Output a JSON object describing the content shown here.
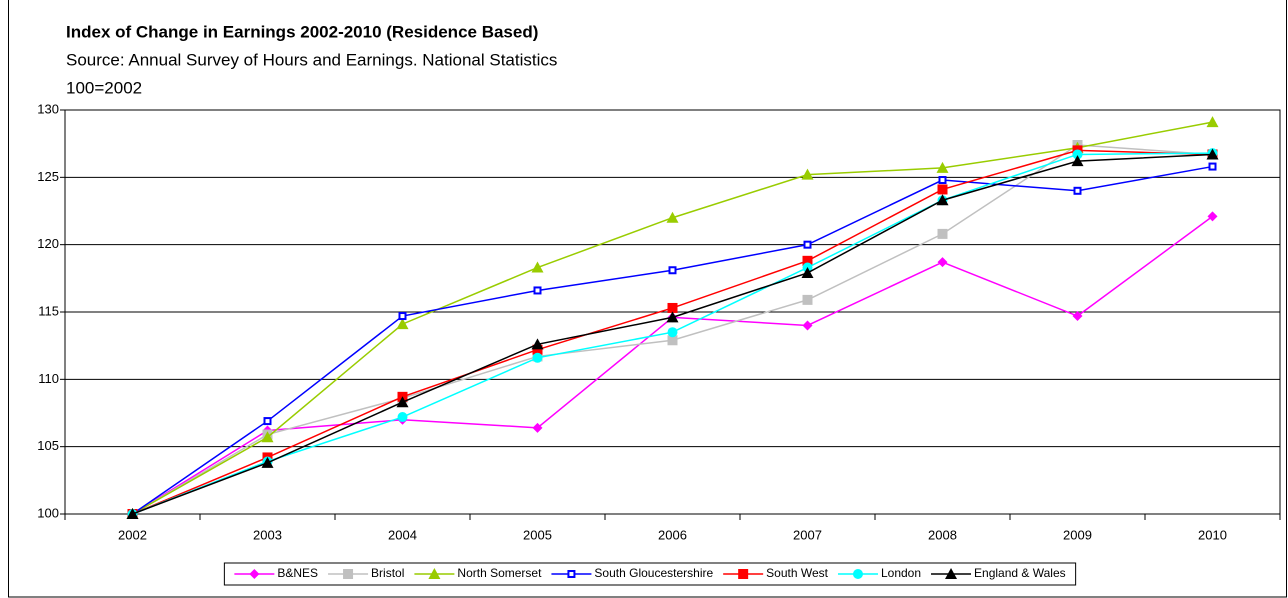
{
  "chart_data": {
    "type": "line",
    "title": "Index of Change in Earnings 2002-2010 (Residence Based)",
    "subtitle": "Source: Annual Survey of Hours and Earnings. National Statistics",
    "note": "100=2002",
    "categories": [
      "2002",
      "2003",
      "2004",
      "2005",
      "2006",
      "2007",
      "2008",
      "2009",
      "2010"
    ],
    "series": [
      {
        "name": "B&NES",
        "color": "#ff00ff",
        "marker": "diamond",
        "values": [
          100,
          106.2,
          107.0,
          106.4,
          114.6,
          114.0,
          118.7,
          114.7,
          122.1
        ]
      },
      {
        "name": "Bristol",
        "color": "#c0c0c0",
        "marker": "square",
        "values": [
          100,
          105.9,
          108.6,
          111.7,
          112.9,
          115.9,
          120.8,
          127.4,
          126.7
        ]
      },
      {
        "name": "North Somerset",
        "color": "#99cc00",
        "marker": "triangle",
        "values": [
          100,
          105.7,
          114.1,
          118.3,
          122.0,
          125.2,
          125.7,
          127.2,
          129.1
        ]
      },
      {
        "name": "South Gloucestershire",
        "color": "#0000ff",
        "marker": "smallsquare",
        "values": [
          100,
          106.9,
          114.7,
          116.6,
          118.1,
          120.0,
          124.8,
          124.0,
          125.8
        ]
      },
      {
        "name": "South West",
        "color": "#ff0000",
        "marker": "square",
        "values": [
          100,
          104.2,
          108.7,
          112.2,
          115.3,
          118.8,
          124.1,
          127.0,
          126.7
        ]
      },
      {
        "name": "London",
        "color": "#00ffff",
        "marker": "circle",
        "values": [
          100,
          103.9,
          107.2,
          111.6,
          113.5,
          118.3,
          123.3,
          126.7,
          126.8
        ]
      },
      {
        "name": "England & Wales",
        "color": "#000000",
        "marker": "triangle",
        "values": [
          100,
          103.8,
          108.3,
          112.6,
          114.6,
          117.9,
          123.3,
          126.2,
          126.7
        ]
      }
    ],
    "ylim": [
      100,
      130
    ],
    "yticks": [
      100,
      105,
      110,
      115,
      120,
      125,
      130
    ],
    "grid": true
  }
}
